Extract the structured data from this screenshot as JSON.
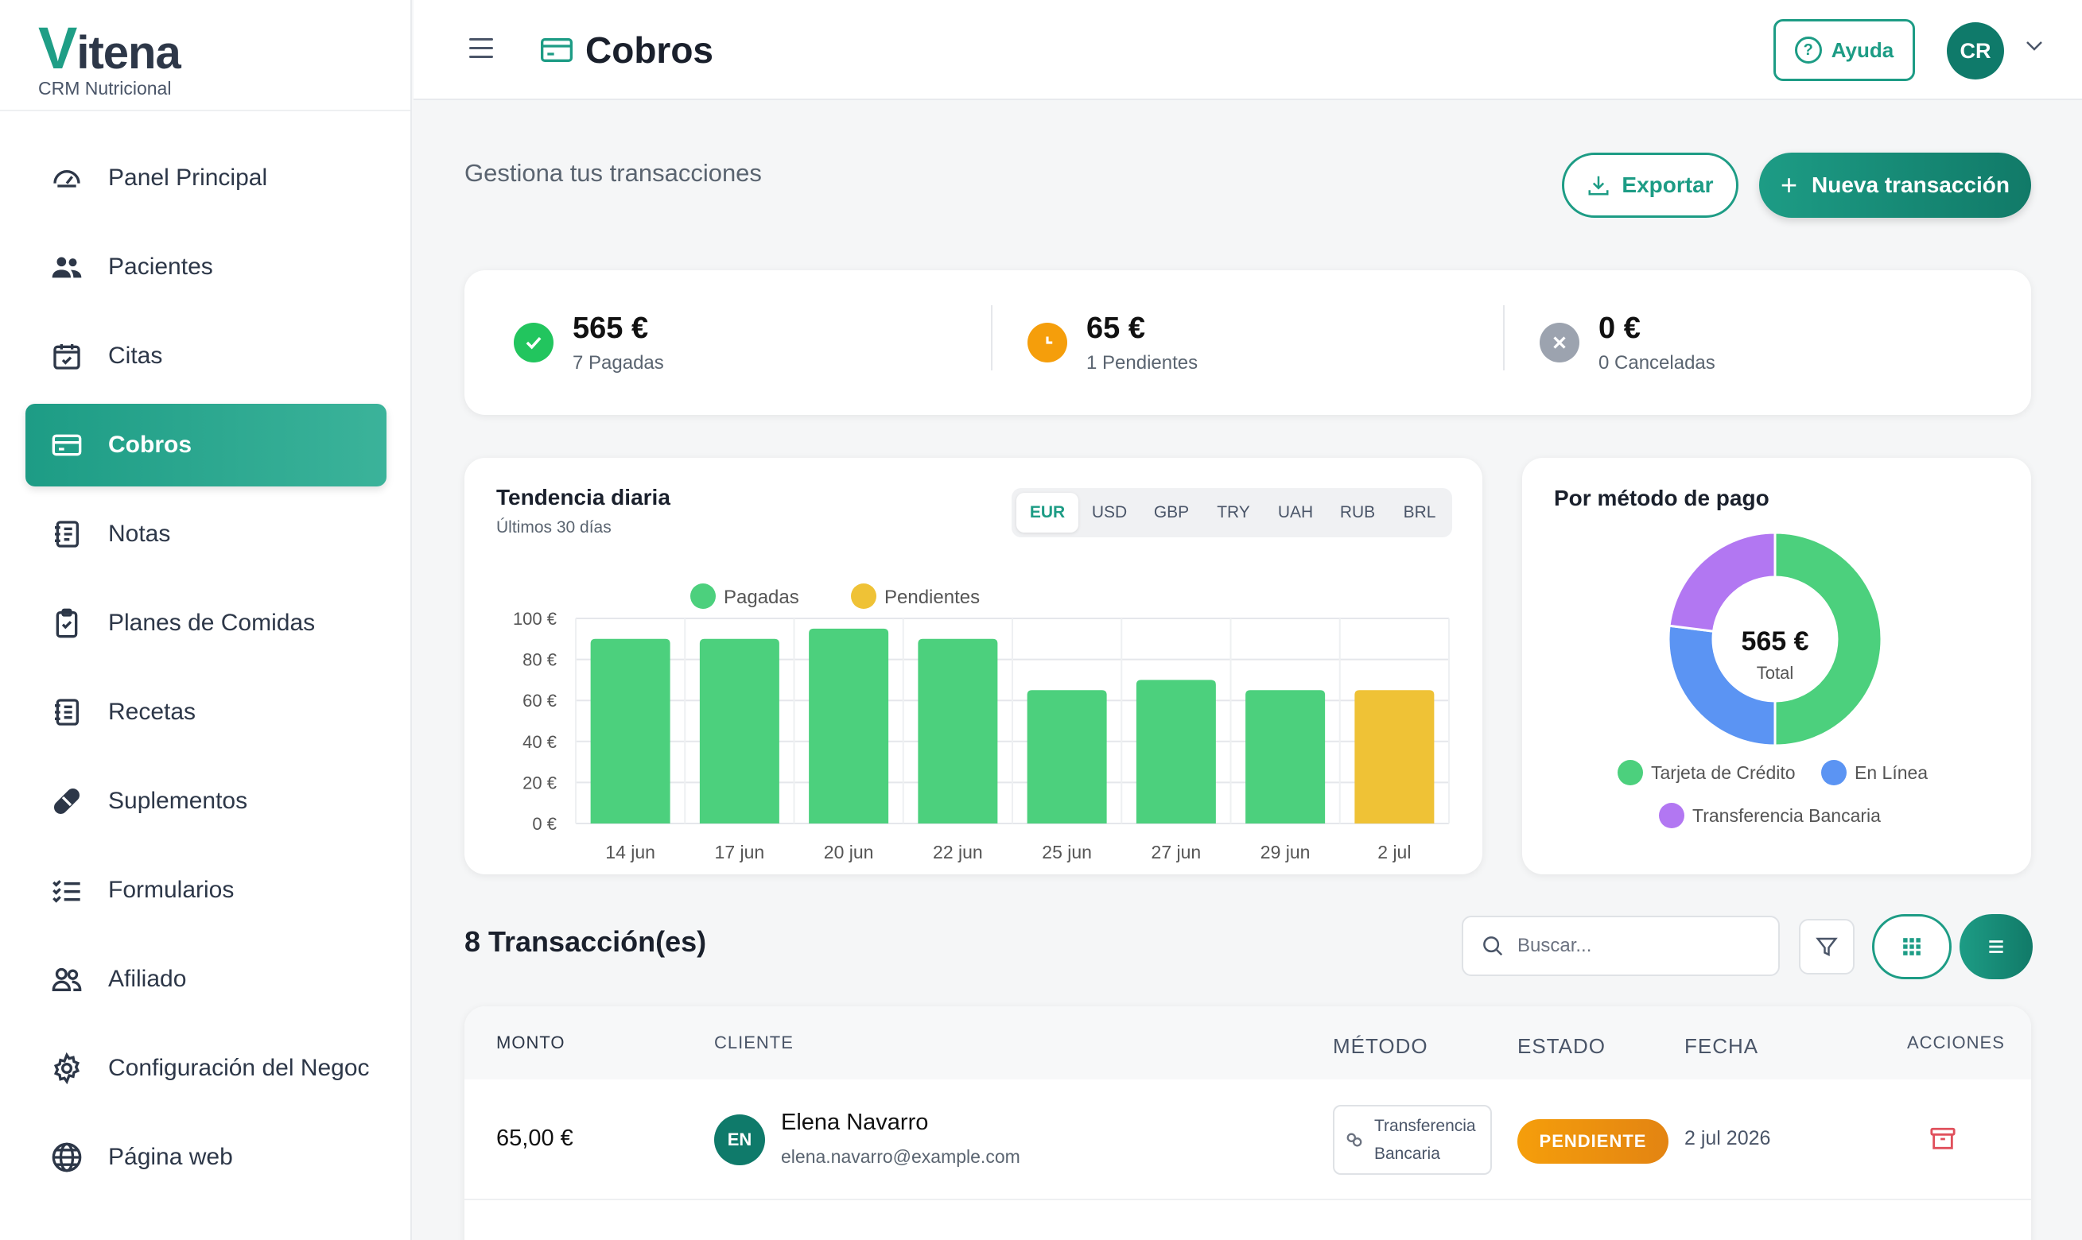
{
  "brand": {
    "logo_v": "V",
    "logo_rest": "itena",
    "tagline": "CRM Nutricional"
  },
  "sidebar": {
    "items": [
      {
        "label": "Panel Principal",
        "icon": "dashboard-gauge-icon"
      },
      {
        "label": "Pacientes",
        "icon": "users-icon"
      },
      {
        "label": "Citas",
        "icon": "calendar-check-icon"
      },
      {
        "label": "Cobros",
        "icon": "credit-card-icon",
        "active": true
      },
      {
        "label": "Notas",
        "icon": "notebook-icon"
      },
      {
        "label": "Planes de Comidas",
        "icon": "clipboard-icon"
      },
      {
        "label": "Recetas",
        "icon": "recipe-list-icon"
      },
      {
        "label": "Suplementos",
        "icon": "pill-icon"
      },
      {
        "label": "Formularios",
        "icon": "checklist-icon"
      },
      {
        "label": "Afiliado",
        "icon": "affiliate-users-icon"
      },
      {
        "label": "Configuración del Negoc",
        "icon": "gear-icon"
      },
      {
        "label": "Página web",
        "icon": "globe-icon"
      }
    ]
  },
  "header": {
    "title": "Cobros",
    "help_label": "Ayuda",
    "user_initials": "CR"
  },
  "main": {
    "subtitle": "Gestiona tus transacciones",
    "export_label": "Exportar",
    "new_label": "Nueva transacción"
  },
  "stats": [
    {
      "value": "565 €",
      "label": "7 Pagadas",
      "color": "#22c55e"
    },
    {
      "value": "65 €",
      "label": "1 Pendientes",
      "color": "#f59e0b"
    },
    {
      "value": "0 €",
      "label": "0 Canceladas",
      "color": "#9ca3af"
    }
  ],
  "trend": {
    "title": "Tendencia diaria",
    "subtitle": "Últimos 30 días",
    "currencies": [
      "EUR",
      "USD",
      "GBP",
      "TRY",
      "UAH",
      "RUB",
      "BRL"
    ],
    "active_currency": "EUR"
  },
  "chart_data": [
    {
      "type": "bar",
      "title": "Tendencia diaria",
      "subtitle": "Últimos 30 días",
      "categories": [
        "14 jun",
        "17 jun",
        "20 jun",
        "22 jun",
        "25 jun",
        "27 jun",
        "29 jun",
        "2 jul"
      ],
      "series": [
        {
          "name": "Pagadas",
          "color": "#4cd07d",
          "values": [
            90,
            90,
            95,
            90,
            65,
            70,
            65,
            0
          ]
        },
        {
          "name": "Pendientes",
          "color": "#efc236",
          "values": [
            0,
            0,
            0,
            0,
            0,
            0,
            0,
            65
          ]
        }
      ],
      "yticks": [
        "0 €",
        "20 €",
        "40 €",
        "60 €",
        "80 €",
        "100 €"
      ],
      "ylim": [
        0,
        100
      ],
      "legend": "top",
      "grid": true
    },
    {
      "type": "pie",
      "title": "Por método de pago",
      "center_value": "565 €",
      "center_label": "Total",
      "slices": [
        {
          "name": "Tarjeta de Crédito",
          "value": 50,
          "color": "#4cd07d"
        },
        {
          "name": "En Línea",
          "value": 27,
          "color": "#5b94f3"
        },
        {
          "name": "Transferencia Bancaria",
          "value": 23,
          "color": "#b277f2"
        }
      ],
      "legend": "bottom"
    }
  ],
  "transactions": {
    "count_label": "8 Transacción(es)",
    "search_placeholder": "Buscar...",
    "columns": [
      "MONTO",
      "CLIENTE",
      "MÉTODO",
      "ESTADO",
      "FECHA",
      "ACCIONES"
    ],
    "rows": [
      {
        "amount": "65,00 €",
        "initials": "EN",
        "name": "Elena Navarro",
        "email": "elena.navarro@example.com",
        "method_line1": "Transferencia",
        "method_line2": "Bancaria",
        "status": "PENDIENTE",
        "date": "2 jul 2026"
      }
    ]
  }
}
